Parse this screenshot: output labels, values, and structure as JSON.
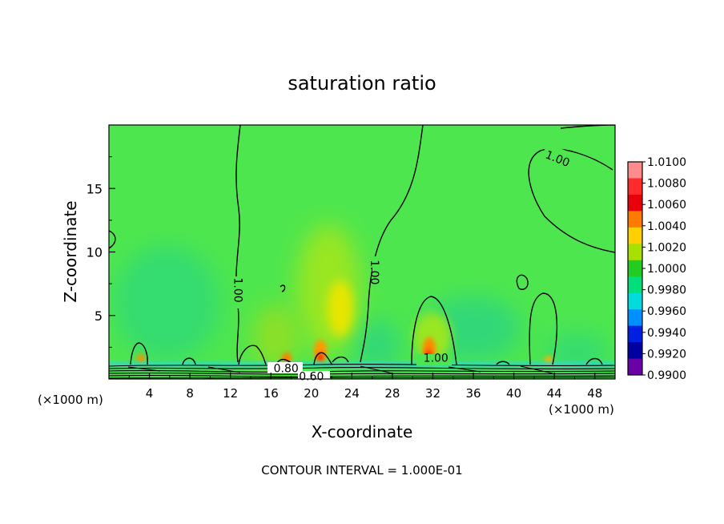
{
  "chart_data": {
    "type": "heatmap",
    "title": "saturation ratio",
    "xlabel": "X-coordinate",
    "ylabel": "Z-coordinate",
    "x_unit": "(×1000 m)",
    "y_unit": "(×1000 m)",
    "xlim": [
      0,
      50
    ],
    "ylim": [
      0,
      20
    ],
    "x_ticks": [
      4,
      8,
      12,
      16,
      20,
      24,
      28,
      32,
      36,
      40,
      44,
      48
    ],
    "y_ticks": [
      5,
      10,
      15
    ],
    "footer": "CONTOUR INTERVAL = 1.000E-01",
    "colorbar": {
      "levels": [
        "1.0100",
        "1.0080",
        "1.0060",
        "1.0040",
        "1.0020",
        "1.0000",
        "0.9980",
        "0.9960",
        "0.9940",
        "0.9920",
        "0.9900"
      ],
      "colors": [
        "#ff8c8c",
        "#ff2a2a",
        "#e8000a",
        "#ff7a00",
        "#ffd000",
        "#a8e000",
        "#22cc22",
        "#00e07a",
        "#00dcdc",
        "#0090ff",
        "#0020e0",
        "#0000a0",
        "#6a00a8"
      ]
    },
    "background_color": "#4ee64e",
    "contour_labels": [
      {
        "text": "1.00",
        "x": 12.7,
        "z": 7.0,
        "angle": 90
      },
      {
        "text": "1.00",
        "x": 26.2,
        "z": 8.4,
        "angle": 90
      },
      {
        "text": "1.00",
        "x": 44.3,
        "z": 17.3,
        "angle": 22
      },
      {
        "text": "1.00",
        "x": 32.3,
        "z": 1.6,
        "angle": 0
      },
      {
        "text": "0.80",
        "x": 17.5,
        "z": 0.8,
        "angle": 0
      },
      {
        "text": "0.60",
        "x": 20.0,
        "z": 0.15,
        "angle": 0
      }
    ]
  }
}
